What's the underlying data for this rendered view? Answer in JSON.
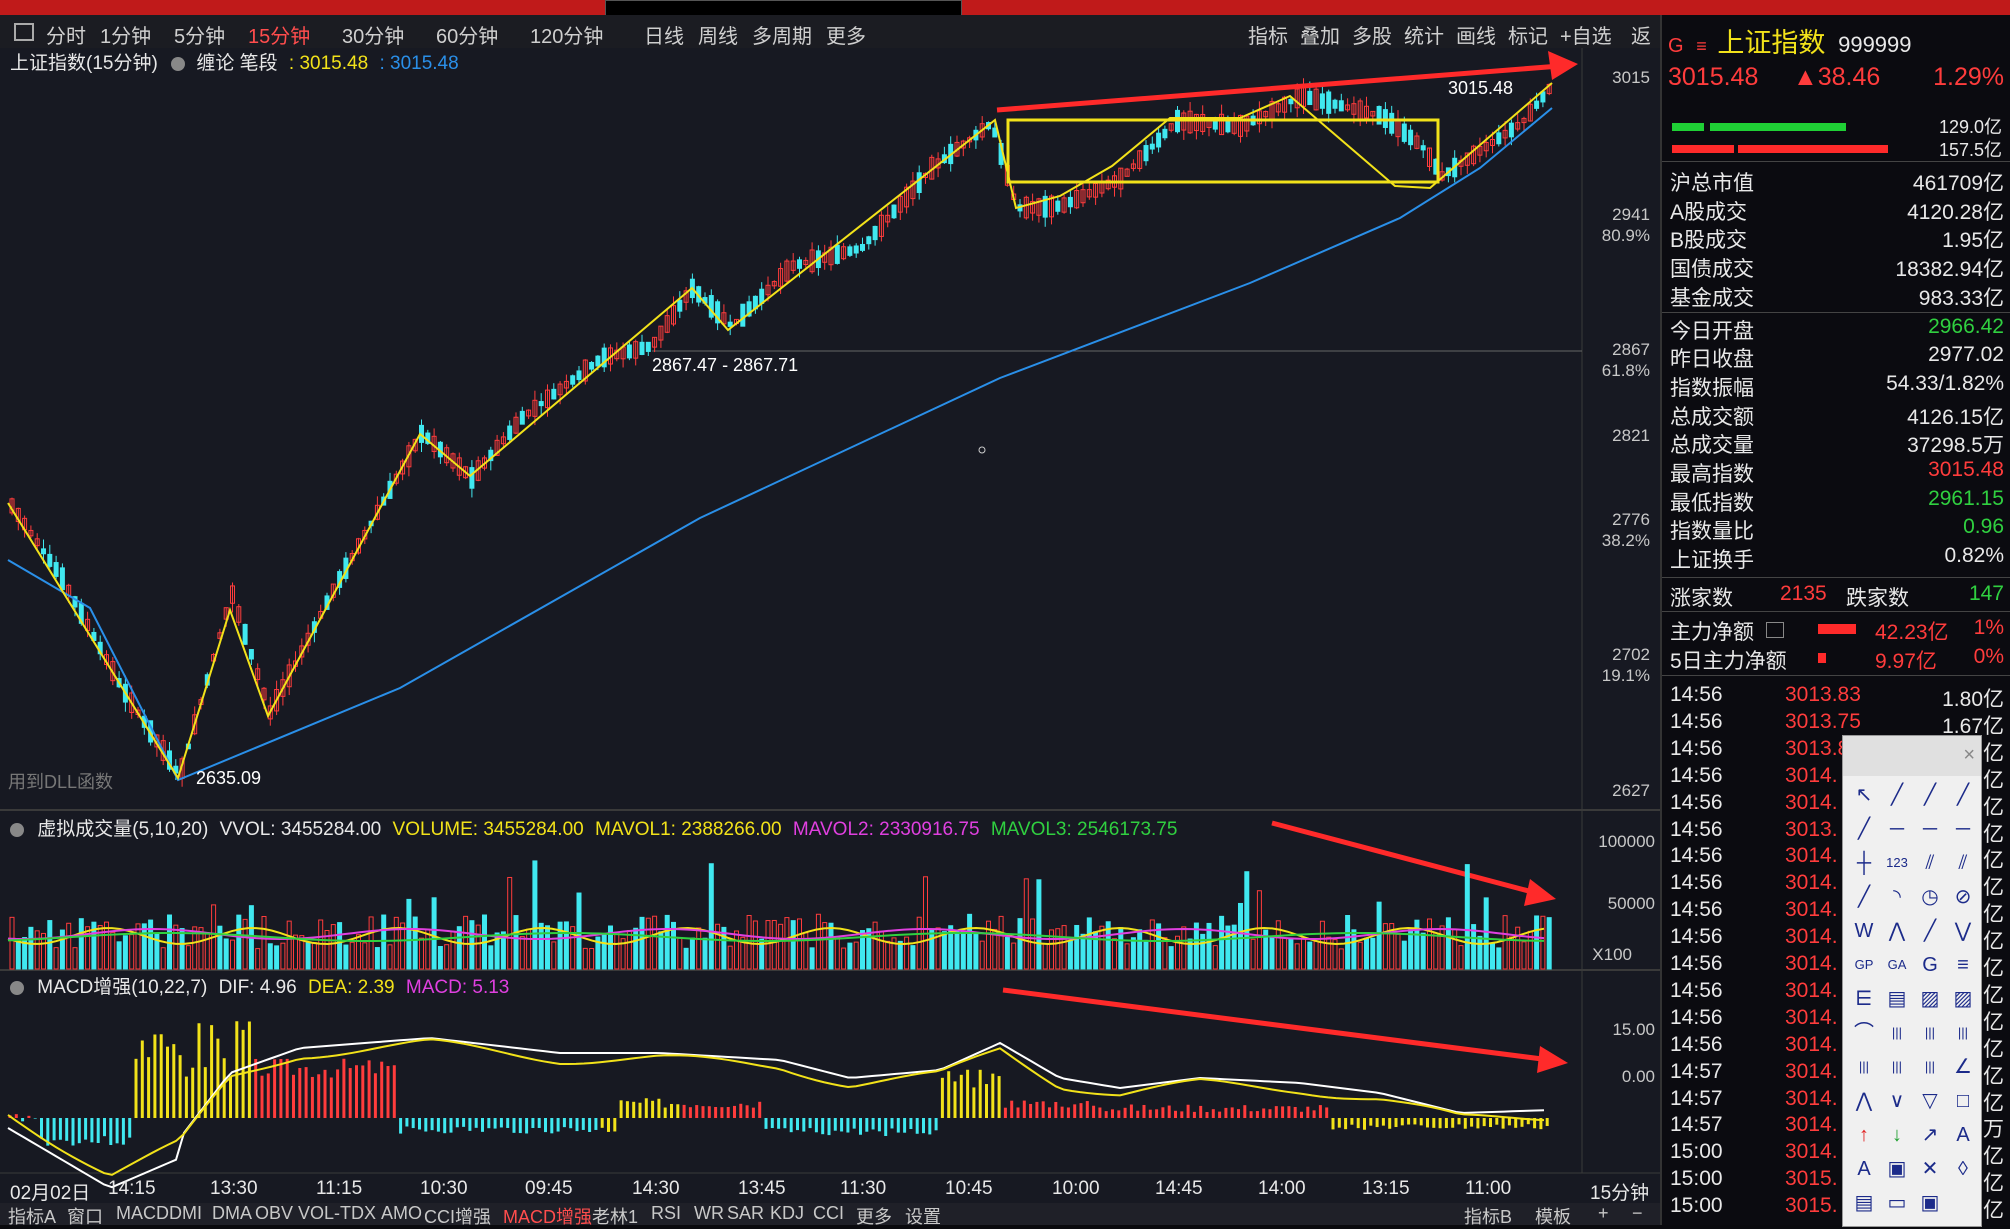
{
  "toolbar": {
    "periods": [
      "分时",
      "1分钟",
      "5分钟",
      "15分钟",
      "30分钟",
      "60分钟",
      "120分钟",
      "日线",
      "周线",
      "多周期",
      "更多"
    ],
    "active_period": "15分钟",
    "right_buttons": [
      "指标",
      "叠加",
      "多股",
      "统计",
      "画线",
      "标记",
      "+自选",
      "返回"
    ]
  },
  "main_chart": {
    "title": "上证指数(15分钟)",
    "indicator": "缠论 笔段",
    "value1": ": 3015.48",
    "value2": ": 3015.48",
    "price_labels": [
      "3015",
      "2941",
      "2867",
      "2821",
      "2776",
      "2702",
      "2627"
    ],
    "pct_labels": [
      "80.9%",
      "61.8%",
      "38.2%",
      "19.1%"
    ],
    "annot_high": "3015.48",
    "annot_low": "2635.09",
    "annot_range": "2867.47 - 2867.71",
    "watermark": "用到DLL函数"
  },
  "volume_chart": {
    "title": "虚拟成交量(5,10,20)",
    "vvol": "VVOL: 3455284.00",
    "volume": "VOLUME: 3455284.00",
    "mavol1": "MAVOL1: 2388266.00",
    "mavol2": "MAVOL2: 2330916.75",
    "mavol3": "MAVOL3: 2546173.75",
    "axis": [
      "100000",
      "50000",
      "X100"
    ]
  },
  "macd_chart": {
    "title": "MACD增强(10,22,7)",
    "dif": "DIF: 4.96",
    "dea": "DEA: 2.39",
    "macd": "MACD: 5.13",
    "axis": [
      "15.00",
      "0.00"
    ]
  },
  "time_axis": [
    "02月02日",
    "14:15",
    "13:30",
    "11:15",
    "10:30",
    "09:45",
    "14:30",
    "13:45",
    "11:30",
    "10:45",
    "10:00",
    "14:45",
    "14:00",
    "13:15",
    "11:00"
  ],
  "period_label": "15分钟",
  "bottom_tabs": [
    "指标A",
    "窗口",
    "MACD",
    "DMI",
    "DMA",
    "OBV",
    "VOL-TDX",
    "AMO",
    "CCI增强",
    "MACD增强",
    "老林1",
    "RSI",
    "WR",
    "SAR",
    "KDJ",
    "CCI",
    "更多",
    "设置"
  ],
  "bottom_active": "MACD增强",
  "bottom_right": [
    "指标B",
    "模板",
    "+",
    "−"
  ],
  "side": {
    "name": "上证指数",
    "code": "999999",
    "price": "3015.48",
    "change": "▲38.46",
    "pct": "1.29%",
    "bar_vals": [
      "129.0亿",
      "157.5亿"
    ],
    "rows": [
      {
        "label": "沪总市值",
        "value": "461709亿",
        "color": "white"
      },
      {
        "label": "A股成交",
        "value": "4120.28亿",
        "color": "white"
      },
      {
        "label": "B股成交",
        "value": "1.95亿",
        "color": "white"
      },
      {
        "label": "国债成交",
        "value": "18382.94亿",
        "color": "white"
      },
      {
        "label": "基金成交",
        "value": "983.33亿",
        "color": "white"
      },
      {
        "label": "今日开盘",
        "value": "2966.42",
        "color": "green"
      },
      {
        "label": "昨日收盘",
        "value": "2977.02",
        "color": "white"
      },
      {
        "label": "指数振幅",
        "value": "54.33/1.82%",
        "color": "white"
      },
      {
        "label": "总成交额",
        "value": "4126.15亿",
        "color": "white"
      },
      {
        "label": "总成交量",
        "value": "37298.5万",
        "color": "white"
      },
      {
        "label": "最高指数",
        "value": "3015.48",
        "color": "red"
      },
      {
        "label": "最低指数",
        "value": "2961.15",
        "color": "green"
      },
      {
        "label": "指数量比",
        "value": "0.96",
        "color": "green"
      },
      {
        "label": "上证换手",
        "value": "0.82%",
        "color": "white"
      }
    ],
    "up_label": "涨家数",
    "up_count": "2135",
    "down_label": "跌家数",
    "down_count": "147",
    "flow1_label": "主力净额",
    "flow1_value": "42.23亿",
    "flow1_pct": "1%",
    "flow2_label": "5日主力净额",
    "flow2_value": "9.97亿",
    "flow2_pct": "0%",
    "ticks": [
      {
        "t": "14:56",
        "p": "3013.83",
        "v": "1.80亿"
      },
      {
        "t": "14:56",
        "p": "3013.75",
        "v": "1.67亿"
      },
      {
        "t": "14:56",
        "p": "3013.8",
        "v": "亿"
      },
      {
        "t": "14:56",
        "p": "3014.",
        "v": "亿"
      },
      {
        "t": "14:56",
        "p": "3014.",
        "v": "亿"
      },
      {
        "t": "14:56",
        "p": "3013.",
        "v": "亿"
      },
      {
        "t": "14:56",
        "p": "3014.",
        "v": "亿"
      },
      {
        "t": "14:56",
        "p": "3014.",
        "v": "亿"
      },
      {
        "t": "14:56",
        "p": "3014.",
        "v": "亿"
      },
      {
        "t": "14:56",
        "p": "3014.",
        "v": "亿"
      },
      {
        "t": "14:56",
        "p": "3014.",
        "v": "亿"
      },
      {
        "t": "14:56",
        "p": "3014.",
        "v": "亿"
      },
      {
        "t": "14:56",
        "p": "3014.",
        "v": "亿"
      },
      {
        "t": "14:56",
        "p": "3014.",
        "v": "亿"
      },
      {
        "t": "14:57",
        "p": "3014.",
        "v": "亿"
      },
      {
        "t": "14:57",
        "p": "3014.",
        "v": "亿"
      },
      {
        "t": "14:57",
        "p": "3014.",
        "v": "万"
      },
      {
        "t": "15:00",
        "p": "3014.",
        "v": "亿"
      },
      {
        "t": "15:00",
        "p": "3015.",
        "v": "亿"
      },
      {
        "t": "15:00",
        "p": "3015.",
        "v": "亿"
      }
    ]
  },
  "drawtools": {
    "close": "×",
    "text_tool": "A"
  },
  "colors": {
    "up": "#ff3c3c",
    "down": "#40e8f0",
    "yellow": "#f2e21a",
    "blue": "#2a8fe8",
    "arrow": "#ff2a2a"
  }
}
